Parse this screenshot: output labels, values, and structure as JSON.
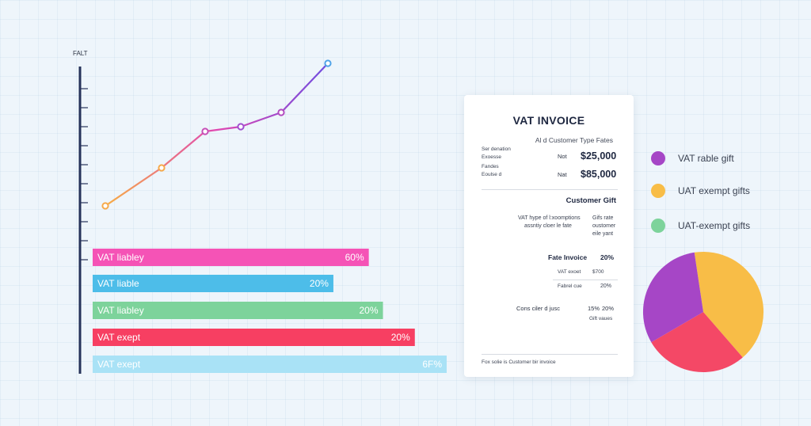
{
  "chart_data": [
    {
      "type": "line",
      "ylabel": "FALT",
      "x": [
        1,
        2,
        3,
        4,
        5,
        6
      ],
      "values": [
        0.09,
        0.33,
        0.56,
        0.59,
        0.68,
        0.99
      ],
      "point_colors": [
        "#f6a94a",
        "#f6a94a",
        "#c64fb8",
        "#a04ed0",
        "#b24bc0",
        "#4fa3e8"
      ],
      "line_gradient": [
        "#f7ad44",
        "#e048b2",
        "#6f4ce0"
      ],
      "grid": false
    },
    {
      "type": "bar",
      "orientation": "horizontal",
      "categories": [
        "VAT liabley",
        "VAT liable",
        "VAT liabley",
        "VAT exept",
        "VAT exept"
      ],
      "value_labels": [
        "60%",
        "20%",
        "20%",
        "20%",
        "6F%"
      ],
      "relative_lengths": [
        0.78,
        0.68,
        0.82,
        0.91,
        1.0
      ],
      "colors": [
        "#f553b6",
        "#4dbde9",
        "#7dd39b",
        "#f73f62",
        "#a9e2f6"
      ]
    },
    {
      "type": "pie",
      "series": [
        {
          "value": 0.41,
          "color": "#f8bd47"
        },
        {
          "value": 0.28,
          "color": "#f44866"
        },
        {
          "value": 0.31,
          "color": "#a646c6"
        }
      ]
    }
  ],
  "invoice": {
    "title": "VAT INVOICE",
    "subtitle": "Al d Customer Type Fates",
    "rows": [
      {
        "l1": "Ser denation",
        "l2": "Exoesse",
        "tag": "Not",
        "amount": "$25,000"
      },
      {
        "l1": "Fandes",
        "l2": "Eoulse d",
        "tag": "Nat",
        "amount": "$85,000"
      }
    ],
    "section_heading": "Customer Gift",
    "desc_left": [
      "VAT hype of l:xoomptions",
      "assntiy cloer le fate"
    ],
    "desc_right": [
      "Gifs rate",
      "oustomer",
      "eile yant"
    ],
    "fate_invoice_label": "Fate Invoice",
    "fate_invoice_value": "20%",
    "vat_exempt_label": "VAT exoet",
    "vat_exempt_value": "$700",
    "federal_label": "Fabrel cue",
    "federal_value": "20%",
    "cons_label": "Cons ciler d jusc",
    "cons_value_a": "15%",
    "cons_value_b": "20%",
    "gift_values": "Gift vaues",
    "footer": "Fox solie is Customer bir invoice"
  },
  "legend": [
    {
      "label": "VAT rable gift",
      "color": "#a646c6"
    },
    {
      "label": "UAT exempt gifts",
      "color": "#f8bd47"
    },
    {
      "label": "UAT-exempt gifts",
      "color": "#7dd39b"
    }
  ]
}
